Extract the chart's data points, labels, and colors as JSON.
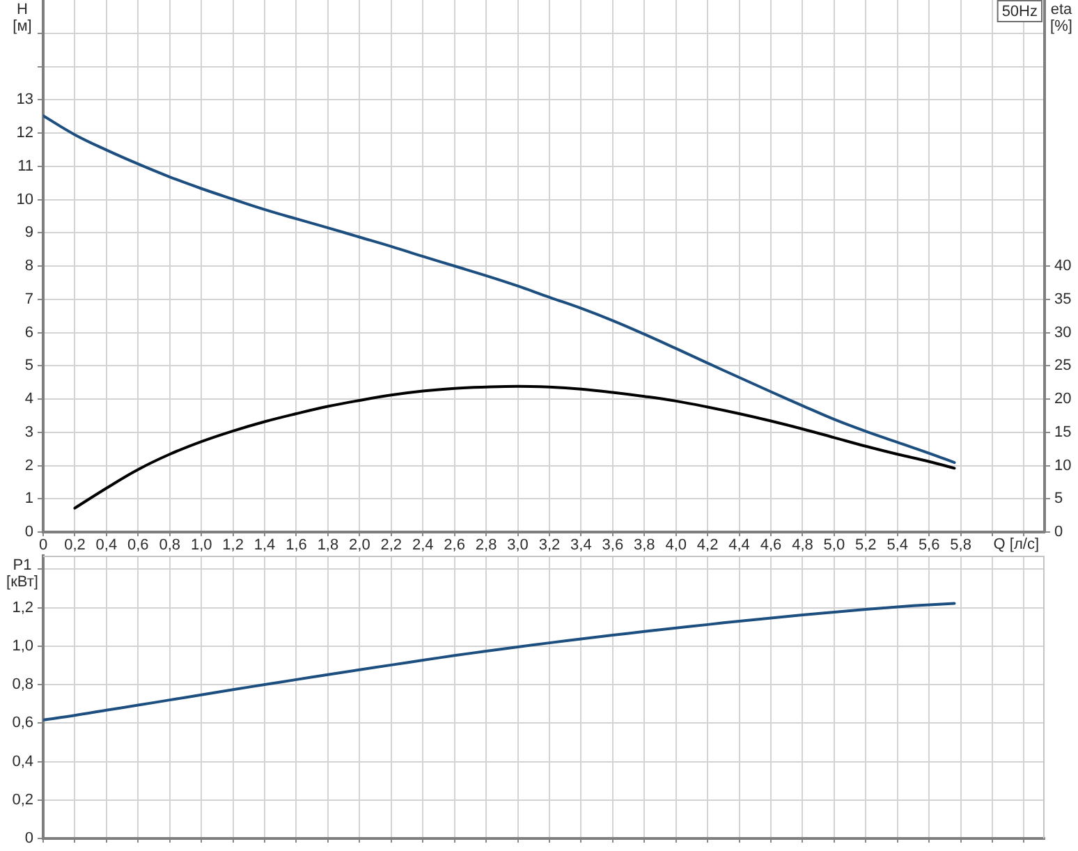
{
  "chart_data": [
    {
      "type": "line",
      "title": "50Hz",
      "xlabel": "Q [л/с]",
      "ylabel": "H [м]",
      "y2label": "eta [%]",
      "series": [
        {
          "color": "#1c4f80",
          "x": [
            0,
            0.2,
            0.4,
            0.6,
            0.8,
            1.0,
            1.2,
            1.4,
            1.6,
            1.8,
            2.0,
            2.2,
            2.4,
            2.6,
            2.8,
            3.0,
            3.2,
            3.4,
            3.6,
            3.8,
            4.0,
            4.2,
            4.4,
            4.6,
            4.8,
            5.0,
            5.2,
            5.4,
            5.6,
            5.76
          ],
          "values": [
            12.52,
            11.95,
            11.49,
            11.07,
            10.68,
            10.33,
            10.01,
            9.7,
            9.42,
            9.15,
            8.87,
            8.59,
            8.29,
            8.0,
            7.71,
            7.4,
            7.06,
            6.73,
            6.36,
            5.95,
            5.52,
            5.08,
            4.65,
            4.22,
            3.8,
            3.39,
            3.03,
            2.7,
            2.37,
            2.09
          ]
        },
        {
          "color": "#000000",
          "axis": "y2",
          "x": [
            0.2,
            0.4,
            0.6,
            0.8,
            1.0,
            1.2,
            1.4,
            1.6,
            1.8,
            2.0,
            2.2,
            2.4,
            2.6,
            2.8,
            3.0,
            3.2,
            3.4,
            3.6,
            3.8,
            4.0,
            4.2,
            4.4,
            4.6,
            4.8,
            5.0,
            5.2,
            5.4,
            5.6,
            5.76
          ],
          "values": [
            3.6,
            6.6,
            9.4,
            11.7,
            13.6,
            15.2,
            16.6,
            17.8,
            18.9,
            19.8,
            20.6,
            21.2,
            21.6,
            21.8,
            21.9,
            21.8,
            21.5,
            21.0,
            20.4,
            19.7,
            18.8,
            17.8,
            16.7,
            15.5,
            14.2,
            12.9,
            11.7,
            10.6,
            9.6
          ]
        }
      ],
      "xlim": [
        0,
        6.33
      ],
      "xticks": [
        0,
        {
          "value": 0.2,
          "label": "0,2"
        },
        {
          "value": 0.4,
          "label": "0,4"
        },
        {
          "value": 0.6,
          "label": "0,6"
        },
        {
          "value": 0.8,
          "label": "0,8"
        },
        {
          "value": 1.0,
          "label": "1,0"
        },
        {
          "value": 1.2,
          "label": "1,2"
        },
        {
          "value": 1.4,
          "label": "1,4"
        },
        {
          "value": 1.6,
          "label": "1,6"
        },
        {
          "value": 1.8,
          "label": "1,8"
        },
        {
          "value": 2.0,
          "label": "2,0"
        },
        {
          "value": 2.2,
          "label": "2,2"
        },
        {
          "value": 2.4,
          "label": "2,4"
        },
        {
          "value": 2.6,
          "label": "2,6"
        },
        {
          "value": 2.8,
          "label": "2,8"
        },
        {
          "value": 3.0,
          "label": "3,0"
        },
        {
          "value": 3.2,
          "label": "3,2"
        },
        {
          "value": 3.4,
          "label": "3,4"
        },
        {
          "value": 3.6,
          "label": "3,6"
        },
        {
          "value": 3.8,
          "label": "3,8"
        },
        {
          "value": 4.0,
          "label": "4,0"
        },
        {
          "value": 4.2,
          "label": "4,2"
        },
        {
          "value": 4.4,
          "label": "4,4"
        },
        {
          "value": 4.6,
          "label": "4,6"
        },
        {
          "value": 4.8,
          "label": "4,8"
        },
        {
          "value": 5.0,
          "label": "5,0"
        },
        {
          "value": 5.2,
          "label": "5,2"
        },
        {
          "value": 5.4,
          "label": "5,4"
        },
        {
          "value": 5.6,
          "label": "5,6"
        },
        {
          "value": 5.8,
          "label": "5,8"
        },
        {
          "value": 6.0,
          "label": null
        },
        {
          "value": 6.2,
          "label": null
        }
      ],
      "ylim": [
        0,
        16
      ],
      "yticks": [
        0,
        1,
        2,
        3,
        4,
        5,
        6,
        7,
        8,
        9,
        10,
        11,
        12,
        13,
        {
          "value": 14,
          "label": null
        },
        {
          "value": 15,
          "label": null
        }
      ],
      "y2lim": [
        0,
        80
      ],
      "y2ticks": [
        0,
        5,
        10,
        15,
        20,
        25,
        30,
        35,
        40
      ],
      "grid": true
    },
    {
      "type": "line",
      "ylabel": "P1 [кВт]",
      "series": [
        {
          "color": "#1c4f80",
          "x": [
            0,
            0.2,
            0.4,
            0.6,
            0.8,
            1.0,
            1.2,
            1.4,
            1.6,
            1.8,
            2.0,
            2.2,
            2.4,
            2.6,
            2.8,
            3.0,
            3.2,
            3.4,
            3.6,
            3.8,
            4.0,
            4.2,
            4.4,
            4.6,
            4.8,
            5.0,
            5.2,
            5.4,
            5.6,
            5.76
          ],
          "values": [
            0.616,
            0.64,
            0.667,
            0.693,
            0.72,
            0.747,
            0.774,
            0.8,
            0.826,
            0.852,
            0.877,
            0.902,
            0.927,
            0.951,
            0.974,
            0.996,
            1.017,
            1.037,
            1.057,
            1.076,
            1.094,
            1.112,
            1.13,
            1.146,
            1.162,
            1.177,
            1.191,
            1.204,
            1.215,
            1.222
          ]
        }
      ],
      "xlim": [
        0,
        6.33
      ],
      "xticks": [
        0,
        0.2,
        0.4,
        0.6,
        0.8,
        1.0,
        1.2,
        1.4,
        1.6,
        1.8,
        2.0,
        2.2,
        2.4,
        2.6,
        2.8,
        3.0,
        3.2,
        3.4,
        3.6,
        3.8,
        4.0,
        4.2,
        4.4,
        4.6,
        4.8,
        5.0,
        5.2,
        5.4,
        5.6,
        5.8,
        6.0,
        6.2
      ],
      "ylim": [
        0,
        1.47
      ],
      "yticks": [
        0,
        {
          "value": 0.2,
          "label": "0,2"
        },
        {
          "value": 0.4,
          "label": "0,4"
        },
        {
          "value": 0.6,
          "label": "0,6"
        },
        {
          "value": 0.8,
          "label": "0,8"
        },
        {
          "value": 1.0,
          "label": "1,0"
        },
        {
          "value": 1.2,
          "label": "1,2"
        },
        {
          "value": 1.4,
          "label": null
        }
      ],
      "grid": true,
      "tick_labels": "y"
    }
  ]
}
